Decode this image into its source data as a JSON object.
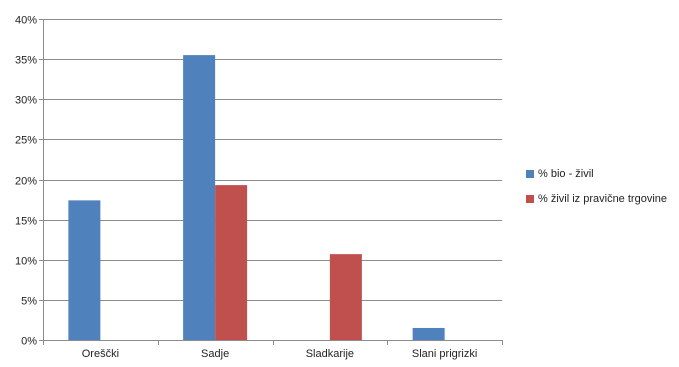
{
  "chart_data": {
    "type": "bar",
    "title": "",
    "xlabel": "",
    "ylabel": "",
    "categories": [
      "Oreščki",
      "Sadje",
      "Sladkarije",
      "Slani prigrizki"
    ],
    "series": [
      {
        "name": "% bio - živil",
        "color": "#4F81BD",
        "values": [
          17.4,
          35.5,
          0,
          1.5
        ]
      },
      {
        "name": "% živil iz pravične trgovine",
        "color": "#C0504D",
        "values": [
          0,
          19.3,
          10.7,
          0
        ]
      }
    ],
    "ylim": [
      0,
      40
    ],
    "y_ticks": [
      0,
      5,
      10,
      15,
      20,
      25,
      30,
      35,
      40
    ],
    "y_tick_labels": [
      "0%",
      "5%",
      "10%",
      "15%",
      "20%",
      "25%",
      "30%",
      "35%",
      "40%"
    ],
    "grid": true,
    "legend_position": "right"
  }
}
